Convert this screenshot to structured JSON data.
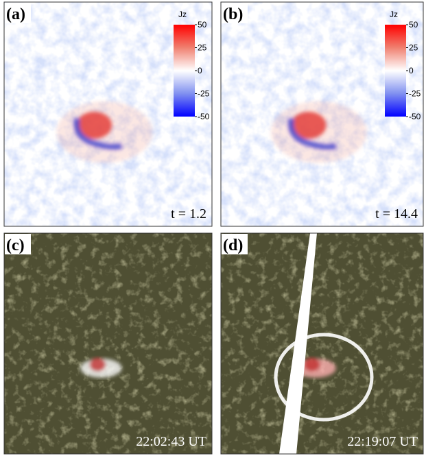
{
  "panels": [
    {
      "label": "(a)",
      "colorbar": {
        "title": "Jz",
        "ticks": [
          50,
          25,
          0,
          -25,
          -50
        ]
      },
      "annotation": "t = 1.2"
    },
    {
      "label": "(b)",
      "colorbar": {
        "title": "Jz",
        "ticks": [
          50,
          25,
          0,
          -25,
          -50
        ]
      },
      "annotation": "t = 14.4"
    },
    {
      "label": "(c)",
      "annotation": "22:02:43 UT"
    },
    {
      "label": "(d)",
      "annotation": "22:19:07 UT"
    }
  ]
}
